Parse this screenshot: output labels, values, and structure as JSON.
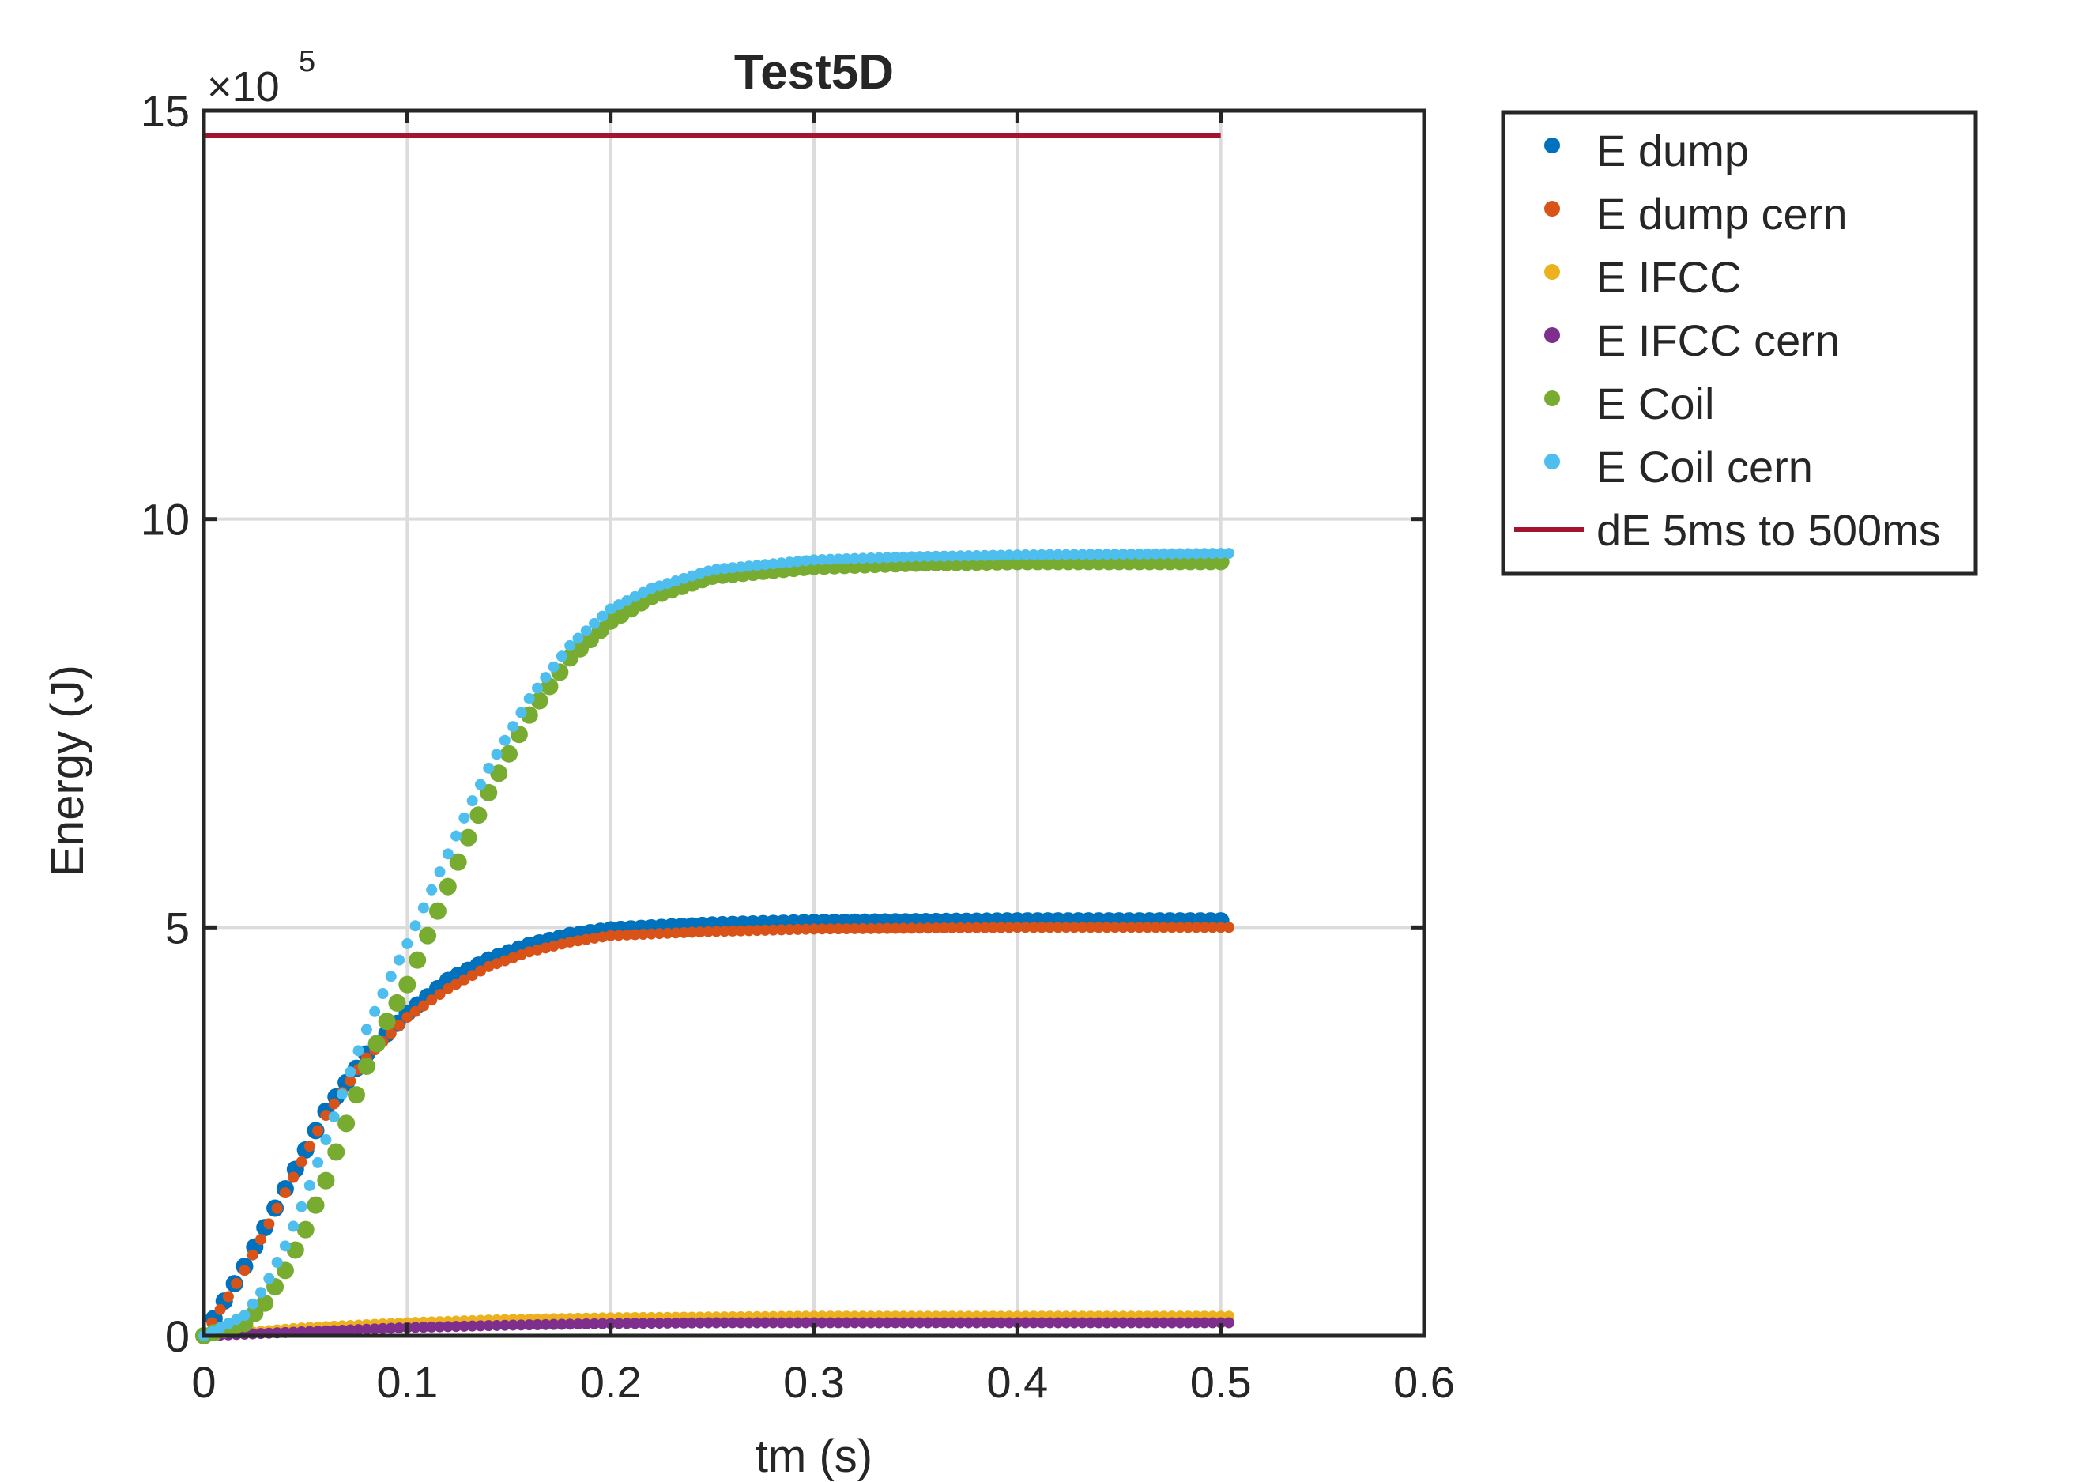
{
  "chart_data": {
    "type": "scatter",
    "title": "Test5D",
    "xlabel": "tm (s)",
    "ylabel": "Energy (J)",
    "y_exponent_label": "×10",
    "y_exponent_power": "5",
    "y_scale_factor": 100000,
    "xlim": [
      0,
      0.6
    ],
    "ylim": [
      0,
      15
    ],
    "x_ticks": [
      0,
      0.1,
      0.2,
      0.3,
      0.4,
      0.5,
      0.6
    ],
    "x_tick_labels": [
      "0",
      "0.1",
      "0.2",
      "0.3",
      "0.4",
      "0.5",
      "0.6"
    ],
    "y_ticks": [
      0,
      5,
      10,
      15
    ],
    "y_tick_labels": [
      "0",
      "5",
      "10",
      "15"
    ],
    "grid": true,
    "legend_position": "outside-right-top",
    "series": [
      {
        "name": "E dump",
        "color": "#0072BD",
        "marker": "dot-large",
        "points": [
          [
            0,
            0
          ],
          [
            0.02,
            0.85
          ],
          [
            0.04,
            1.8
          ],
          [
            0.06,
            2.75
          ],
          [
            0.08,
            3.45
          ],
          [
            0.1,
            3.95
          ],
          [
            0.12,
            4.35
          ],
          [
            0.14,
            4.6
          ],
          [
            0.16,
            4.78
          ],
          [
            0.18,
            4.9
          ],
          [
            0.2,
            4.97
          ],
          [
            0.25,
            5.03
          ],
          [
            0.3,
            5.06
          ],
          [
            0.35,
            5.07
          ],
          [
            0.4,
            5.08
          ],
          [
            0.45,
            5.08
          ],
          [
            0.5,
            5.08
          ]
        ]
      },
      {
        "name": "E dump cern",
        "color": "#D95319",
        "marker": "dot",
        "points": [
          [
            0,
            0
          ],
          [
            0.02,
            0.8
          ],
          [
            0.04,
            1.75
          ],
          [
            0.06,
            2.7
          ],
          [
            0.08,
            3.4
          ],
          [
            0.1,
            3.9
          ],
          [
            0.12,
            4.25
          ],
          [
            0.14,
            4.52
          ],
          [
            0.16,
            4.7
          ],
          [
            0.18,
            4.82
          ],
          [
            0.2,
            4.9
          ],
          [
            0.25,
            4.95
          ],
          [
            0.3,
            4.98
          ],
          [
            0.35,
            4.99
          ],
          [
            0.4,
            5.0
          ],
          [
            0.45,
            5.0
          ],
          [
            0.5,
            5.0
          ]
        ]
      },
      {
        "name": "E IFCC",
        "color": "#EDB120",
        "marker": "dot",
        "points": [
          [
            0,
            0
          ],
          [
            0.05,
            0.1
          ],
          [
            0.1,
            0.16
          ],
          [
            0.15,
            0.2
          ],
          [
            0.2,
            0.22
          ],
          [
            0.25,
            0.23
          ],
          [
            0.3,
            0.24
          ],
          [
            0.35,
            0.24
          ],
          [
            0.4,
            0.24
          ],
          [
            0.45,
            0.24
          ],
          [
            0.5,
            0.24
          ]
        ]
      },
      {
        "name": "E IFCC cern",
        "color": "#7E2F8E",
        "marker": "dot",
        "points": [
          [
            0,
            0
          ],
          [
            0.05,
            0.05
          ],
          [
            0.1,
            0.1
          ],
          [
            0.15,
            0.13
          ],
          [
            0.2,
            0.15
          ],
          [
            0.25,
            0.16
          ],
          [
            0.3,
            0.16
          ],
          [
            0.35,
            0.16
          ],
          [
            0.4,
            0.16
          ],
          [
            0.45,
            0.16
          ],
          [
            0.5,
            0.16
          ]
        ]
      },
      {
        "name": "E Coil",
        "color": "#77AC30",
        "marker": "dot-large",
        "points": [
          [
            0,
            0
          ],
          [
            0.02,
            0.15
          ],
          [
            0.03,
            0.4
          ],
          [
            0.04,
            0.8
          ],
          [
            0.05,
            1.3
          ],
          [
            0.06,
            1.9
          ],
          [
            0.07,
            2.6
          ],
          [
            0.08,
            3.3
          ],
          [
            0.09,
            3.85
          ],
          [
            0.1,
            4.3
          ],
          [
            0.11,
            4.9
          ],
          [
            0.12,
            5.5
          ],
          [
            0.13,
            6.1
          ],
          [
            0.14,
            6.65
          ],
          [
            0.16,
            7.6
          ],
          [
            0.18,
            8.3
          ],
          [
            0.2,
            8.75
          ],
          [
            0.22,
            9.05
          ],
          [
            0.25,
            9.3
          ],
          [
            0.3,
            9.42
          ],
          [
            0.35,
            9.46
          ],
          [
            0.4,
            9.48
          ],
          [
            0.45,
            9.48
          ],
          [
            0.5,
            9.48
          ]
        ]
      },
      {
        "name": "E Coil cern",
        "color": "#4DBEEE",
        "marker": "dot",
        "points": [
          [
            0,
            0
          ],
          [
            0.02,
            0.25
          ],
          [
            0.03,
            0.6
          ],
          [
            0.04,
            1.1
          ],
          [
            0.05,
            1.7
          ],
          [
            0.06,
            2.4
          ],
          [
            0.07,
            3.1
          ],
          [
            0.08,
            3.75
          ],
          [
            0.09,
            4.3
          ],
          [
            0.1,
            4.8
          ],
          [
            0.11,
            5.35
          ],
          [
            0.12,
            5.9
          ],
          [
            0.13,
            6.45
          ],
          [
            0.14,
            6.95
          ],
          [
            0.16,
            7.8
          ],
          [
            0.18,
            8.45
          ],
          [
            0.2,
            8.9
          ],
          [
            0.22,
            9.15
          ],
          [
            0.25,
            9.38
          ],
          [
            0.3,
            9.5
          ],
          [
            0.35,
            9.54
          ],
          [
            0.4,
            9.56
          ],
          [
            0.45,
            9.57
          ],
          [
            0.5,
            9.58
          ]
        ]
      },
      {
        "name": "dE 5ms to 500ms",
        "color": "#A2142F",
        "marker": "line",
        "points": [
          [
            0,
            14.7
          ],
          [
            0.5,
            14.7
          ]
        ]
      }
    ]
  }
}
